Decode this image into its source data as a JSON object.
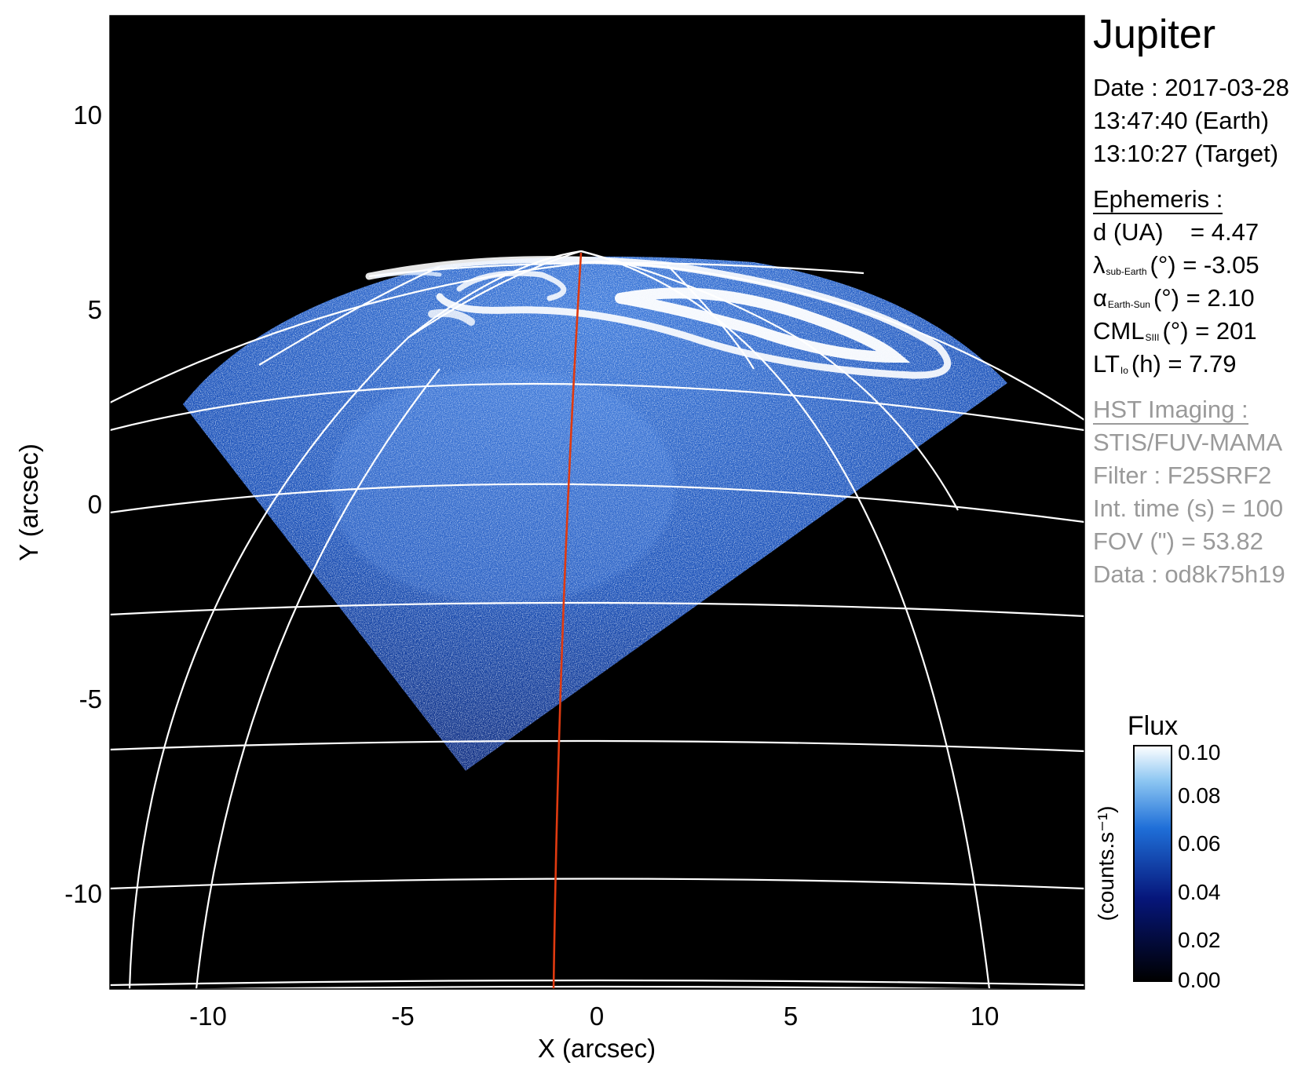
{
  "chart_data": {
    "type": "image",
    "xlabel": "X (arcsec)",
    "ylabel": "Y (arcsec)",
    "xlim": [
      -12.9,
      12.4
    ],
    "ylim": [
      -12.4,
      12.4
    ],
    "xticks": [
      "-10",
      "-5",
      "0",
      "5",
      "10"
    ],
    "yticks": [
      "10",
      "5",
      "0",
      "-5",
      "-10"
    ],
    "colorbar": {
      "label": "Flux",
      "units": "(counts.s⁻¹)",
      "ticks": [
        "0.10",
        "0.08",
        "0.06",
        "0.04",
        "0.02",
        "0.00"
      ],
      "range": [
        0.0,
        0.1
      ]
    }
  },
  "info": {
    "title": "Jupiter",
    "date_line": "Date : 2017-03-28",
    "time_earth": "13:47:40 (Earth)",
    "time_target": "13:10:27 (Target)",
    "ephemeris_header": "Ephemeris :",
    "d": "d (UA)    = 4.47",
    "lambda_sym": "λ",
    "lambda_sub": "sub-Earth",
    "lambda_rest": "(°) = -3.05",
    "alpha_sym": "α",
    "alpha_sub": "Earth-Sun",
    "alpha_rest": "(°) = 2.10",
    "cml_sym": "CML",
    "cml_sub": "SIII",
    "cml_rest": "(°) = 201",
    "lt_sym": "LT",
    "lt_sub": "Io",
    "lt_rest": "(h) = 7.79",
    "hst_header": "HST Imaging :",
    "instrument": "STIS/FUV-MAMA",
    "filter": "Filter : F25SRF2",
    "int_time": "Int. time (s) = 100",
    "fov": "FOV (\") = 53.82",
    "data_id": "Data : od8k75h19"
  },
  "colors": {
    "background": "#000000",
    "grid": "#ffffff",
    "meridian": "#e03a10",
    "aurora": "#ffffff",
    "emission": "#1e5fd0"
  }
}
